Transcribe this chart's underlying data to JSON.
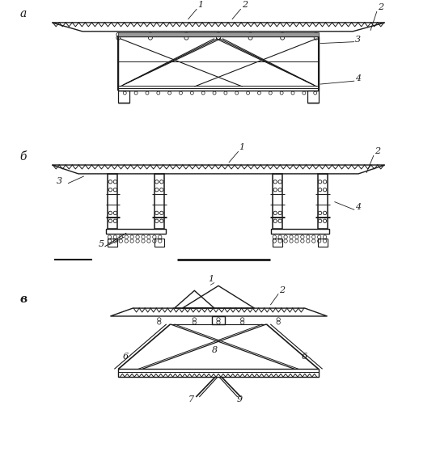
{
  "bg_color": "#ffffff",
  "line_color": "#1a1a1a",
  "label_a": "а",
  "label_b": "б",
  "label_v": "в",
  "fig_width": 5.39,
  "fig_height": 5.75,
  "dpi": 100
}
